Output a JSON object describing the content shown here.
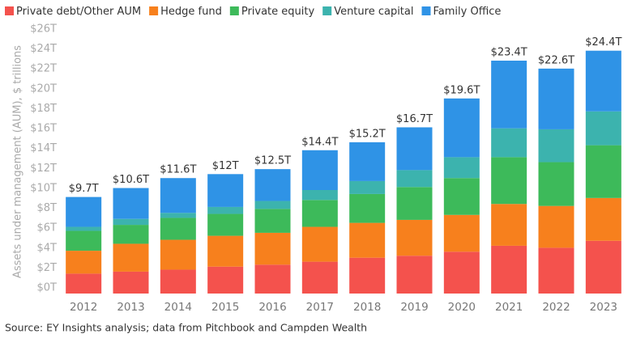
{
  "chart_data": {
    "type": "stacked_bar",
    "y_axis_label": "Assets under management (AUM), $ trillions",
    "source": "Source: EY Insights analysis; data from Pitchbook and Campden Wealth",
    "categories": [
      "2012",
      "2013",
      "2014",
      "2015",
      "2016",
      "2017",
      "2018",
      "2019",
      "2020",
      "2021",
      "2022",
      "2023"
    ],
    "series": [
      {
        "name": "Private debt/Other AUM",
        "color": "#f4524d",
        "values": [
          2.0,
          2.2,
          2.4,
          2.7,
          2.9,
          3.2,
          3.6,
          3.8,
          4.2,
          4.8,
          4.6,
          5.3
        ]
      },
      {
        "name": "Hedge fund",
        "color": "#f7801d",
        "values": [
          2.3,
          2.8,
          3.0,
          3.1,
          3.2,
          3.5,
          3.5,
          3.6,
          3.7,
          4.2,
          4.2,
          4.3
        ]
      },
      {
        "name": "Private equity",
        "color": "#3dba5a",
        "values": [
          2.0,
          1.9,
          2.2,
          2.2,
          2.4,
          2.7,
          2.9,
          3.3,
          3.7,
          4.7,
          4.4,
          5.3
        ]
      },
      {
        "name": "Venture capital",
        "color": "#3cb3ae",
        "values": [
          0.4,
          0.6,
          0.5,
          0.7,
          0.8,
          1.0,
          1.3,
          1.7,
          2.1,
          2.9,
          3.3,
          3.4
        ]
      },
      {
        "name": "Family Office",
        "color": "#2f93e6",
        "values": [
          3.0,
          3.1,
          3.5,
          3.3,
          3.2,
          4.0,
          3.9,
          4.3,
          5.9,
          6.8,
          6.1,
          6.1
        ]
      }
    ],
    "totals": {
      "values": [
        9.7,
        10.6,
        11.6,
        12,
        12.5,
        14.4,
        15.2,
        16.7,
        19.6,
        23.4,
        22.6,
        24.4
      ],
      "value_labels": [
        "$9.7T",
        "$10.6T",
        "$11.6T",
        "$12T",
        "$12.5T",
        "$14.4T",
        "$15.2T",
        "$16.7T",
        "$19.6T",
        "$23.4T",
        "$22.6T",
        "$24.4T"
      ]
    },
    "ylim": [
      0,
      26
    ],
    "yticks": [
      {
        "value": 0,
        "label": "$0T"
      },
      {
        "value": 2,
        "label": "$2T"
      },
      {
        "value": 4,
        "label": "$4T"
      },
      {
        "value": 6,
        "label": "$6T"
      },
      {
        "value": 8,
        "label": "$8T"
      },
      {
        "value": 10,
        "label": "$10T"
      },
      {
        "value": 12,
        "label": "$12T"
      },
      {
        "value": 14,
        "label": "$14T"
      },
      {
        "value": 16,
        "label": "$16T"
      },
      {
        "value": 18,
        "label": "$18T"
      },
      {
        "value": 20,
        "label": "$20T"
      },
      {
        "value": 22,
        "label": "$22T"
      },
      {
        "value": 24,
        "label": "$24T"
      },
      {
        "value": 26,
        "label": "$26T"
      }
    ],
    "grid": false,
    "legend": "top-left"
  }
}
